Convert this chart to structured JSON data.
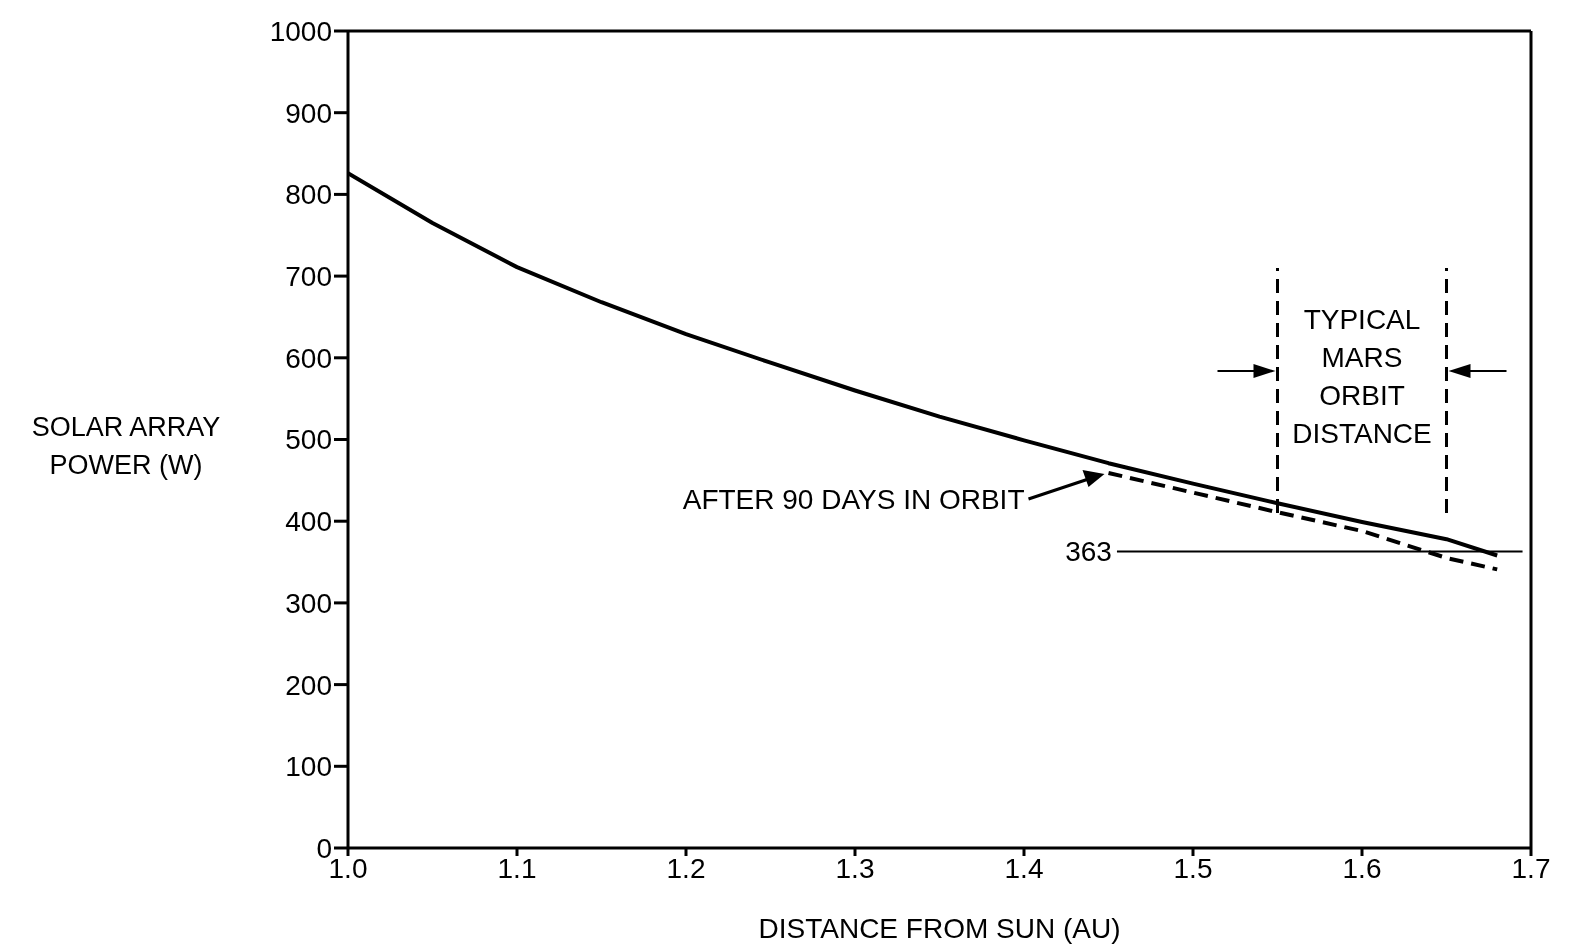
{
  "chart_data": {
    "type": "line",
    "xlabel": "DISTANCE FROM SUN (AU)",
    "ylabel": "SOLAR ARRAY POWER (W)",
    "xlim": [
      1,
      1.7
    ],
    "xticks": [
      {
        "value": 1,
        "label": "1.0"
      },
      1.1,
      1.2,
      1.3,
      1.4,
      1.5,
      1.6,
      1.7
    ],
    "ylim": [
      0,
      1000
    ],
    "yticks": [
      0,
      100,
      200,
      300,
      400,
      500,
      600,
      700,
      800,
      900,
      1000
    ],
    "marker": "none",
    "series": [
      {
        "color": "#000000",
        "line_style": "solid",
        "x": [
          1,
          1.05,
          1.1,
          1.15,
          1.2,
          1.25,
          1.3,
          1.35,
          1.4,
          1.45,
          1.5,
          1.55,
          1.6,
          1.65,
          1.68
        ],
        "values": [
          826,
          765,
          711,
          668,
          629,
          594,
          560,
          528,
          499,
          471,
          446,
          422,
          399,
          378,
          358
        ]
      },
      {
        "color": "#000000",
        "line_style": "dashed",
        "x": [
          1.45,
          1.5,
          1.55,
          1.6,
          1.65,
          1.68
        ],
        "values": [
          459,
          435,
          411,
          388,
          355,
          341
        ]
      }
    ],
    "ref_lines": [
      {
        "axis": "y",
        "value": 363,
        "label": "363"
      },
      {
        "axis": "x",
        "value": 1.55,
        "line_style": "dashed"
      },
      {
        "axis": "x",
        "value": 1.65,
        "line_style": "dashed"
      }
    ],
    "annotations": [
      "AFTER 90 DAYS IN ORBIT",
      "TYPICAL MARS ORBIT DISTANCE"
    ]
  }
}
